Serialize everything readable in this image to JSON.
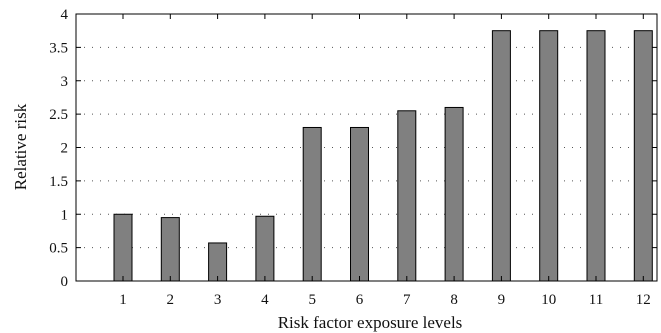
{
  "chart_data": {
    "type": "bar",
    "xlabel": "Risk factor exposure levels",
    "ylabel": "Relative risk",
    "categories": [
      "1",
      "2",
      "3",
      "4",
      "5",
      "6",
      "7",
      "8",
      "9",
      "10",
      "11",
      "12"
    ],
    "values": [
      1.0,
      0.95,
      0.57,
      0.97,
      2.3,
      2.3,
      2.55,
      2.6,
      3.75,
      3.75,
      3.75,
      3.75
    ],
    "ylim": [
      0,
      4
    ],
    "yticks": [
      "0",
      "0.5",
      "1",
      "1.5",
      "2",
      "2.5",
      "3",
      "3.5",
      "4"
    ],
    "grid": "dotted horizontal",
    "colors": {
      "bar_fill": "#808080",
      "bar_stroke": "#000000",
      "grid": "#555555"
    }
  }
}
